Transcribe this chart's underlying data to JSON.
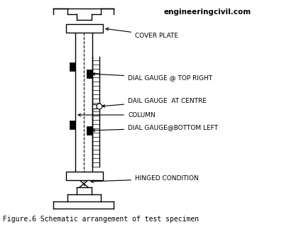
{
  "title": "Figure.6 Schematic arrangement of test specimen",
  "watermark": "engineeringcivil.com",
  "labels": {
    "cover_plate": "COVER PLATE",
    "dial_top": "DIAL GAUGE @ TOP RIGHT",
    "dial_centre": "DAIL GAUGE  AT CENTRE",
    "column": "COLUMN",
    "dial_bottom": "DIAL GAUGE@BOTTOM LEFT",
    "hinged": "HINGED CONDITION"
  },
  "bg_color": "#ffffff",
  "line_color": "#000000",
  "fig_width": 4.07,
  "fig_height": 3.2,
  "dpi": 100
}
